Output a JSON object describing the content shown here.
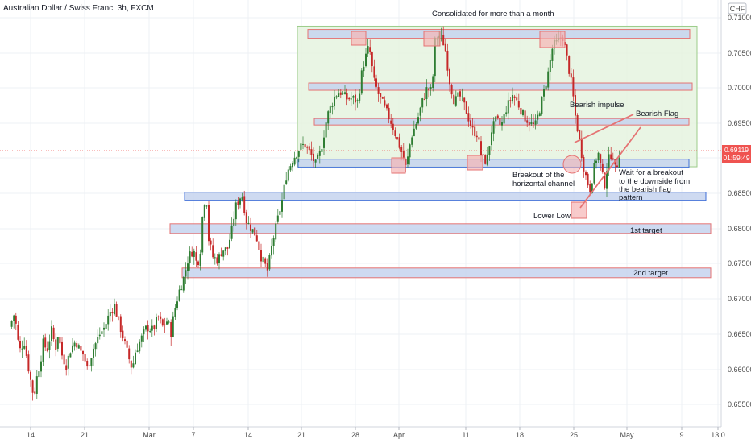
{
  "header": {
    "title": "Australian Dollar / Swiss Franc, 3h, FXCM"
  },
  "price_axis": {
    "currency": "CHF",
    "ticks": [
      "0.71000",
      "0.70500",
      "0.70000",
      "0.69500",
      "0.69000",
      "0.68500",
      "0.68000",
      "0.67500",
      "0.67000",
      "0.66500",
      "0.66000",
      "0.65500"
    ],
    "last_price": "0.69119",
    "countdown": "01:59:49"
  },
  "time_axis": {
    "ticks": [
      "14",
      "21",
      "Mar",
      "7",
      "14",
      "21",
      "28",
      "Apr",
      "11",
      "18",
      "25",
      "May",
      "9",
      "13:0"
    ]
  },
  "annotations": {
    "consolidated": "Consolidated for more than a month",
    "bearish_impulse": "Bearish impulse",
    "bearish_flag": "Bearish Flag",
    "breakout_line1": "Breakout of the",
    "breakout_line2": "horizontal channel",
    "wait_line1": "Wait for a breakout",
    "wait_line2": "to the downside from",
    "wait_line3": "the bearish flag",
    "wait_line4": "pattern",
    "lower_low": "Lower Low",
    "target1": "1st target",
    "target2": "2nd target"
  },
  "colors": {
    "up": "#26a69a",
    "down": "#ef5350",
    "candle_up": "#2e7d32",
    "candle_down": "#c62828",
    "level_fill": "#c5d3ef",
    "level_border_red": "#e57373",
    "level_border_blue": "#3f6fd8",
    "channel_fill": "#e3f3dd",
    "channel_border": "#9ccc8a",
    "marker_fill": "#f5b5b5",
    "price_label": "#ef5350"
  },
  "chart_data": {
    "type": "candlestick",
    "title": "Australian Dollar / Swiss Franc, 3h, FXCM",
    "y_unit": "CHF",
    "ylim": [
      0.6525,
      0.7135
    ],
    "last_price": 0.69119,
    "levels": [
      {
        "name": "channel-top",
        "price": 0.7077
      },
      {
        "name": "channel-upper-mid",
        "price": 0.7002
      },
      {
        "name": "channel-lower-mid",
        "price": 0.6952
      },
      {
        "name": "channel-bottom",
        "price": 0.6893
      },
      {
        "name": "support",
        "price": 0.6846
      },
      {
        "name": "1st target",
        "price": 0.68
      },
      {
        "name": "2nd target",
        "price": 0.6737
      }
    ],
    "consolidation_range": [
      0.6888,
      0.7088
    ],
    "path": [
      [
        0.666,
        0
      ],
      [
        0.668,
        6
      ],
      [
        0.6625,
        12
      ],
      [
        0.664,
        18
      ],
      [
        0.659,
        25
      ],
      [
        0.656,
        30
      ],
      [
        0.659,
        34
      ],
      [
        0.661,
        38
      ],
      [
        0.664,
        42
      ],
      [
        0.6625,
        46
      ],
      [
        0.6655,
        52
      ],
      [
        0.663,
        57
      ],
      [
        0.665,
        60
      ],
      [
        0.662,
        65
      ],
      [
        0.6605,
        70
      ],
      [
        0.663,
        76
      ],
      [
        0.664,
        82
      ],
      [
        0.6625,
        88
      ],
      [
        0.662,
        92
      ],
      [
        0.66,
        96
      ],
      [
        0.663,
        104
      ],
      [
        0.665,
        112
      ],
      [
        0.666,
        118
      ],
      [
        0.668,
        124
      ],
      [
        0.669,
        130
      ],
      [
        0.6665,
        136
      ],
      [
        0.664,
        142
      ],
      [
        0.6615,
        148
      ],
      [
        0.66,
        152
      ],
      [
        0.6625,
        156
      ],
      [
        0.664,
        162
      ],
      [
        0.666,
        170
      ],
      [
        0.6655,
        178
      ],
      [
        0.6675,
        184
      ],
      [
        0.666,
        190
      ],
      [
        0.667,
        196
      ],
      [
        0.665,
        200
      ],
      [
        0.668,
        204
      ],
      [
        0.671,
        210
      ],
      [
        0.673,
        216
      ],
      [
        0.676,
        222
      ],
      [
        0.677,
        228
      ],
      [
        0.675,
        232
      ],
      [
        0.676,
        236
      ],
      [
        0.683,
        240
      ],
      [
        0.685,
        244
      ],
      [
        0.679,
        246
      ],
      [
        0.676,
        252
      ],
      [
        0.6755,
        258
      ],
      [
        0.677,
        264
      ],
      [
        0.677,
        270
      ],
      [
        0.68,
        276
      ],
      [
        0.683,
        280
      ],
      [
        0.685,
        288
      ],
      [
        0.681,
        294
      ],
      [
        0.68,
        300
      ],
      [
        0.679,
        306
      ],
      [
        0.676,
        312
      ],
      [
        0.674,
        320
      ],
      [
        0.678,
        326
      ],
      [
        0.681,
        332
      ],
      [
        0.684,
        338
      ],
      [
        0.688,
        344
      ],
      [
        0.69,
        352
      ],
      [
        0.6915,
        360
      ],
      [
        0.692,
        366
      ],
      [
        0.6905,
        374
      ],
      [
        0.689,
        380
      ],
      [
        0.691,
        386
      ],
      [
        0.696,
        394
      ],
      [
        0.699,
        404
      ],
      [
        0.6995,
        410
      ],
      [
        0.6985,
        418
      ],
      [
        0.6985,
        426
      ],
      [
        0.698,
        432
      ],
      [
        0.703,
        438
      ],
      [
        0.706,
        446
      ],
      [
        0.701,
        452
      ],
      [
        0.699,
        458
      ],
      [
        0.697,
        466
      ],
      [
        0.695,
        474
      ],
      [
        0.693,
        480
      ],
      [
        0.691,
        486
      ],
      [
        0.6885,
        492
      ],
      [
        0.693,
        498
      ],
      [
        0.6955,
        506
      ],
      [
        0.698,
        512
      ],
      [
        0.7,
        518
      ],
      [
        0.6995,
        524
      ],
      [
        0.707,
        528
      ],
      [
        0.7075,
        534
      ],
      [
        0.706,
        540
      ],
      [
        0.701,
        546
      ],
      [
        0.698,
        552
      ],
      [
        0.699,
        558
      ],
      [
        0.697,
        566
      ],
      [
        0.694,
        574
      ],
      [
        0.6935,
        580
      ],
      [
        0.69,
        586
      ],
      [
        0.6895,
        592
      ],
      [
        0.694,
        598
      ],
      [
        0.6955,
        604
      ],
      [
        0.6945,
        610
      ],
      [
        0.697,
        616
      ],
      [
        0.699,
        624
      ],
      [
        0.698,
        630
      ],
      [
        0.696,
        638
      ],
      [
        0.695,
        646
      ],
      [
        0.6945,
        652
      ],
      [
        0.698,
        660
      ],
      [
        0.702,
        668
      ],
      [
        0.706,
        674
      ],
      [
        0.7065,
        680
      ],
      [
        0.7075,
        686
      ],
      [
        0.704,
        692
      ],
      [
        0.7,
        698
      ],
      [
        0.696,
        702
      ],
      [
        0.692,
        708
      ],
      [
        0.689,
        712
      ],
      [
        0.687,
        716
      ],
      [
        0.6855,
        720
      ],
      [
        0.689,
        726
      ],
      [
        0.691,
        730
      ],
      [
        0.6885,
        734
      ],
      [
        0.686,
        738
      ],
      [
        0.6895,
        742
      ],
      [
        0.691,
        748
      ],
      [
        0.688,
        752
      ],
      [
        0.6905,
        756
      ],
      [
        0.6912,
        758
      ]
    ]
  }
}
